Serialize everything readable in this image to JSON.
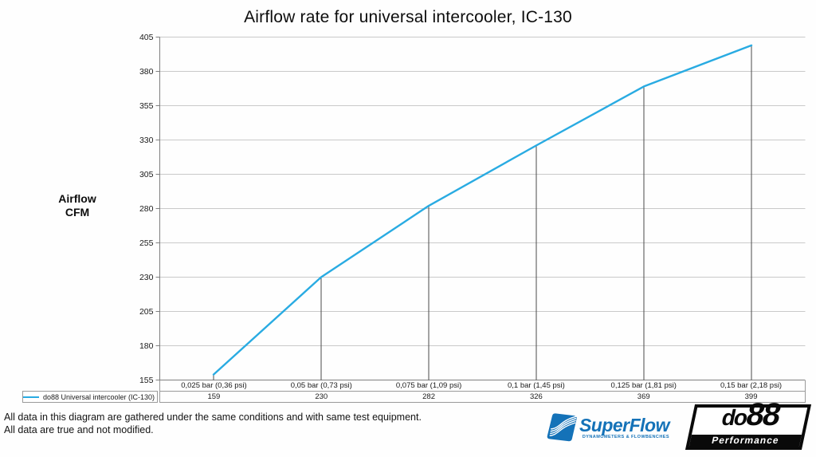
{
  "title": "Airflow rate for universal intercooler, IC-130",
  "chart_data": {
    "type": "line",
    "title": "Airflow rate for universal intercooler, IC-130",
    "categories": [
      "0,025 bar (0,36 psi)",
      "0,05 bar (0,73 psi)",
      "0,075 bar (1,09 psi)",
      "0,1 bar (1,45 psi)",
      "0,125 bar (1,81 psi)",
      "0,15 bar (2,18 psi)"
    ],
    "series": [
      {
        "name": "do88 Universal intercooler (IC-130)",
        "color": "#29ABE2",
        "values": [
          159,
          230,
          282,
          326,
          369,
          399
        ]
      }
    ],
    "ylabel": "Airflow CFM",
    "ylim": [
      155,
      405
    ],
    "ytick_step": 25,
    "grid": true,
    "drop_lines": true,
    "legend_position": "bottom-left"
  },
  "footer": {
    "line1": "All data in this diagram are gathered under the same conditions and with same test equipment.",
    "line2": "All data are true and not modified."
  },
  "logos": {
    "superflow": {
      "name": "SuperFlow",
      "tagline": "DYNAMOMETERS & FLOWBENCHES",
      "color": "#1472B8"
    },
    "do88": {
      "brand_text": "do",
      "brand_number": "88",
      "tagline": "Performance",
      "color": "#0A0A0A"
    }
  }
}
